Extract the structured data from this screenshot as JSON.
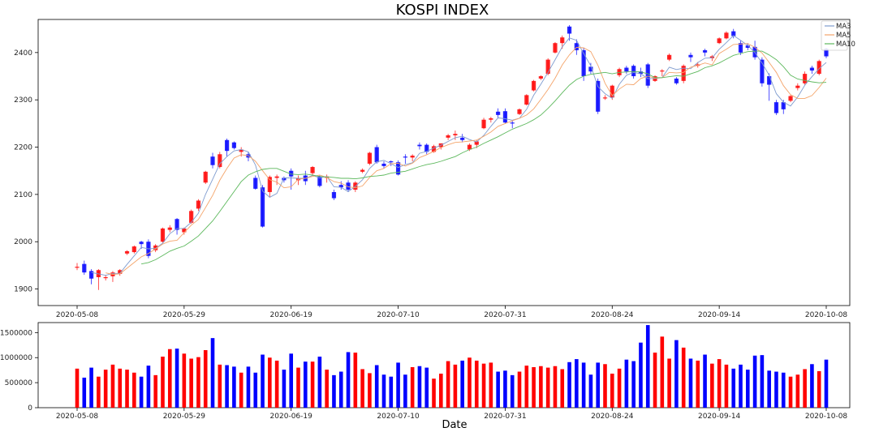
{
  "chart_data": [
    {
      "type": "candlestick",
      "title": "KOSPI INDEX",
      "ylim": [
        1865,
        2470
      ],
      "yticks": [
        1900,
        2000,
        2100,
        2200,
        2300,
        2400
      ],
      "xticks": [
        {
          "i": 0,
          "label": "2020-05-08"
        },
        {
          "i": 15,
          "label": "2020-05-29"
        },
        {
          "i": 30,
          "label": "2020-06-19"
        },
        {
          "i": 45,
          "label": "2020-07-10"
        },
        {
          "i": 60,
          "label": "2020-07-31"
        },
        {
          "i": 75,
          "label": "2020-08-24"
        },
        {
          "i": 90,
          "label": "2020-09-14"
        },
        {
          "i": 105,
          "label": "2020-10-08"
        }
      ],
      "legend": {
        "position": "top-right",
        "entries": [
          {
            "name": "MA3",
            "color": "#7f9ccf"
          },
          {
            "name": "MA5",
            "color": "#f4a46a"
          },
          {
            "name": "MA10",
            "color": "#5cb85c"
          }
        ]
      },
      "up_color": "#ff0000",
      "down_color": "#0000ff",
      "ohlc": [
        [
          1945,
          1955,
          1940,
          1947
        ],
        [
          1953,
          1960,
          1930,
          1935
        ],
        [
          1938,
          1942,
          1910,
          1922
        ],
        [
          1925,
          1942,
          1898,
          1940
        ],
        [
          1923,
          1930,
          1918,
          1925
        ],
        [
          1927,
          1938,
          1915,
          1935
        ],
        [
          1932,
          1942,
          1928,
          1940
        ],
        [
          1975,
          1982,
          1972,
          1980
        ],
        [
          1978,
          1992,
          1975,
          1990
        ],
        [
          2000,
          2002,
          1985,
          1995
        ],
        [
          2000,
          2005,
          1965,
          1970
        ],
        [
          1982,
          1995,
          1978,
          1992
        ],
        [
          2000,
          2030,
          1998,
          2028
        ],
        [
          2025,
          2035,
          2020,
          2030
        ],
        [
          2048,
          2050,
          2015,
          2025
        ],
        [
          2020,
          2030,
          2015,
          2028
        ],
        [
          2040,
          2068,
          2038,
          2065
        ],
        [
          2070,
          2090,
          2065,
          2087
        ],
        [
          2125,
          2150,
          2122,
          2148
        ],
        [
          2180,
          2188,
          2155,
          2162
        ],
        [
          2158,
          2190,
          2155,
          2185
        ],
        [
          2215,
          2218,
          2180,
          2192
        ],
        [
          2210,
          2212,
          2195,
          2198
        ],
        [
          2190,
          2200,
          2180,
          2195
        ],
        [
          2185,
          2190,
          2170,
          2178
        ],
        [
          2135,
          2140,
          2110,
          2112
        ],
        [
          2115,
          2120,
          2030,
          2032
        ],
        [
          2105,
          2140,
          2095,
          2137
        ],
        [
          2135,
          2142,
          2120,
          2138
        ],
        [
          2135,
          2138,
          2125,
          2130
        ],
        [
          2150,
          2155,
          2110,
          2138
        ],
        [
          2130,
          2140,
          2120,
          2135
        ],
        [
          2140,
          2150,
          2120,
          2128
        ],
        [
          2145,
          2160,
          2140,
          2158
        ],
        [
          2138,
          2140,
          2115,
          2118
        ],
        [
          2135,
          2142,
          2125,
          2138
        ],
        [
          2105,
          2110,
          2088,
          2092
        ],
        [
          2120,
          2128,
          2110,
          2115
        ],
        [
          2125,
          2130,
          2105,
          2110
        ],
        [
          2110,
          2128,
          2105,
          2125
        ],
        [
          2148,
          2155,
          2145,
          2152
        ],
        [
          2165,
          2190,
          2162,
          2188
        ],
        [
          2200,
          2205,
          2165,
          2168
        ],
        [
          2165,
          2170,
          2155,
          2160
        ],
        [
          2170,
          2172,
          2160,
          2168
        ],
        [
          2168,
          2172,
          2140,
          2142
        ],
        [
          2180,
          2185,
          2165,
          2178
        ],
        [
          2178,
          2185,
          2170,
          2182
        ],
        [
          2205,
          2210,
          2195,
          2202
        ],
        [
          2205,
          2208,
          2185,
          2190
        ],
        [
          2190,
          2205,
          2188,
          2202
        ],
        [
          2200,
          2205,
          2195,
          2208
        ],
        [
          2220,
          2228,
          2215,
          2225
        ],
        [
          2225,
          2235,
          2215,
          2228
        ],
        [
          2220,
          2228,
          2210,
          2215
        ],
        [
          2195,
          2208,
          2192,
          2205
        ],
        [
          2205,
          2215,
          2198,
          2212
        ],
        [
          2240,
          2262,
          2238,
          2258
        ],
        [
          2258,
          2264,
          2252,
          2261
        ],
        [
          2275,
          2282,
          2262,
          2268
        ],
        [
          2276,
          2282,
          2250,
          2252
        ],
        [
          2252,
          2256,
          2240,
          2250
        ],
        [
          2270,
          2282,
          2268,
          2280
        ],
        [
          2290,
          2312,
          2288,
          2310
        ],
        [
          2320,
          2342,
          2318,
          2340
        ],
        [
          2345,
          2352,
          2342,
          2350
        ],
        [
          2355,
          2388,
          2352,
          2385
        ],
        [
          2400,
          2422,
          2398,
          2420
        ],
        [
          2420,
          2436,
          2408,
          2432
        ],
        [
          2455,
          2458,
          2425,
          2440
        ],
        [
          2420,
          2428,
          2395,
          2405
        ],
        [
          2405,
          2410,
          2340,
          2350
        ],
        [
          2370,
          2378,
          2355,
          2360
        ],
        [
          2340,
          2345,
          2270,
          2275
        ],
        [
          2305,
          2310,
          2300,
          2305
        ],
        [
          2305,
          2332,
          2300,
          2330
        ],
        [
          2352,
          2368,
          2348,
          2365
        ],
        [
          2368,
          2372,
          2355,
          2360
        ],
        [
          2372,
          2375,
          2345,
          2350
        ],
        [
          2360,
          2368,
          2348,
          2355
        ],
        [
          2375,
          2378,
          2325,
          2330
        ],
        [
          2340,
          2352,
          2338,
          2350
        ],
        [
          2360,
          2365,
          2350,
          2362
        ],
        [
          2385,
          2398,
          2382,
          2395
        ],
        [
          2345,
          2348,
          2332,
          2335
        ],
        [
          2340,
          2375,
          2335,
          2372
        ],
        [
          2395,
          2400,
          2380,
          2390
        ],
        [
          2372,
          2380,
          2368,
          2375
        ],
        [
          2405,
          2408,
          2392,
          2400
        ],
        [
          2388,
          2395,
          2382,
          2392
        ],
        [
          2420,
          2432,
          2418,
          2430
        ],
        [
          2430,
          2445,
          2428,
          2442
        ],
        [
          2445,
          2450,
          2430,
          2435
        ],
        [
          2420,
          2425,
          2395,
          2400
        ],
        [
          2415,
          2420,
          2405,
          2410
        ],
        [
          2412,
          2425,
          2385,
          2390
        ],
        [
          2385,
          2390,
          2328,
          2335
        ],
        [
          2350,
          2356,
          2298,
          2332
        ],
        [
          2295,
          2300,
          2268,
          2272
        ],
        [
          2295,
          2300,
          2270,
          2280
        ],
        [
          2298,
          2310,
          2295,
          2308
        ],
        [
          2325,
          2335,
          2320,
          2330
        ],
        [
          2335,
          2360,
          2332,
          2355
        ],
        [
          2368,
          2372,
          2355,
          2362
        ],
        [
          2355,
          2385,
          2352,
          2382
        ],
        [
          2408,
          2410,
          2388,
          2392
        ]
      ],
      "ma3": [
        null,
        null,
        1935,
        1932,
        1929,
        1933,
        1933,
        1952,
        1970,
        1988,
        1985,
        1986,
        1997,
        2017,
        2028,
        2028,
        2041,
        2060,
        2100,
        2132,
        2165,
        2180,
        2192,
        2195,
        2190,
        2162,
        2107,
        2094,
        2102,
        2135,
        2135,
        2134,
        2134,
        2140,
        2135,
        2138,
        2116,
        2115,
        2106,
        2117,
        2131,
        2155,
        2169,
        2172,
        2165,
        2157,
        2163,
        2167,
        2187,
        2191,
        2198,
        2204,
        2212,
        2220,
        2223,
        2216,
        2211,
        2225,
        2244,
        2262,
        2260,
        2257,
        2261,
        2280,
        2310,
        2333,
        2358,
        2385,
        2412,
        2431,
        2426,
        2398,
        2372,
        2328,
        2313,
        2303,
        2333,
        2352,
        2358,
        2355,
        2345,
        2345,
        2347,
        2369,
        2364,
        2367,
        2366,
        2379,
        2388,
        2389,
        2407,
        2421,
        2436,
        2426,
        2415,
        2400,
        2378,
        2352,
        2313,
        2295,
        2287,
        2306,
        2331,
        2349,
        2366,
        2379
      ],
      "ma5": [
        null,
        null,
        null,
        null,
        1934,
        1931,
        1932,
        1944,
        1956,
        1968,
        1975,
        1985,
        1995,
        2001,
        2003,
        2019,
        2035,
        2047,
        2072,
        2098,
        2130,
        2155,
        2177,
        2184,
        2182,
        2170,
        2150,
        2131,
        2126,
        2114,
        2116,
        2132,
        2134,
        2138,
        2141,
        2136,
        2127,
        2124,
        2116,
        2114,
        2118,
        2136,
        2150,
        2155,
        2165,
        2166,
        2160,
        2166,
        2178,
        2184,
        2191,
        2199,
        2205,
        2210,
        2211,
        2213,
        2215,
        2223,
        2232,
        2244,
        2250,
        2256,
        2261,
        2268,
        2281,
        2301,
        2322,
        2346,
        2374,
        2395,
        2411,
        2410,
        2402,
        2373,
        2335,
        2309,
        2323,
        2333,
        2332,
        2345,
        2350,
        2346,
        2347,
        2358,
        2357,
        2358,
        2369,
        2373,
        2378,
        2374,
        2398,
        2407,
        2417,
        2418,
        2419,
        2411,
        2399,
        2379,
        2358,
        2330,
        2311,
        2303,
        2303,
        2309,
        2326,
        2346
      ],
      "ma10": [
        null,
        null,
        null,
        null,
        null,
        null,
        null,
        null,
        null,
        1953,
        1956,
        1962,
        1971,
        1980,
        1986,
        1991,
        2001,
        2012,
        2028,
        2044,
        2064,
        2085,
        2106,
        2127,
        2141,
        2148,
        2153,
        2155,
        2155,
        2149,
        2143,
        2142,
        2143,
        2141,
        2138,
        2137,
        2136,
        2134,
        2134,
        2133,
        2135,
        2138,
        2139,
        2141,
        2145,
        2147,
        2149,
        2154,
        2159,
        2163,
        2166,
        2170,
        2175,
        2180,
        2188,
        2195,
        2200,
        2208,
        2215,
        2222,
        2230,
        2238,
        2244,
        2250,
        2258,
        2268,
        2282,
        2298,
        2315,
        2331,
        2343,
        2350,
        2354,
        2356,
        2358,
        2355,
        2358,
        2359,
        2360,
        2359,
        2355,
        2347,
        2347,
        2349,
        2351,
        2350,
        2355,
        2360,
        2368,
        2372,
        2378,
        2386,
        2394,
        2398,
        2402,
        2403,
        2403,
        2395,
        2385,
        2370,
        2352,
        2344,
        2341,
        2338,
        2336,
        2337
      ]
    },
    {
      "type": "bar",
      "xlabel": "Date",
      "ylim": [
        0,
        1700000
      ],
      "yticks": [
        0,
        500000,
        1000000,
        1500000
      ],
      "up_color": "#ff0000",
      "down_color": "#0000ff",
      "values": [
        780000,
        600000,
        800000,
        620000,
        760000,
        860000,
        780000,
        760000,
        700000,
        620000,
        840000,
        650000,
        1020000,
        1170000,
        1180000,
        1080000,
        980000,
        1010000,
        1150000,
        1390000,
        860000,
        850000,
        820000,
        700000,
        820000,
        700000,
        1060000,
        1000000,
        940000,
        760000,
        1080000,
        800000,
        920000,
        920000,
        1020000,
        760000,
        650000,
        720000,
        1110000,
        1100000,
        770000,
        690000,
        850000,
        660000,
        620000,
        900000,
        660000,
        810000,
        830000,
        800000,
        580000,
        680000,
        930000,
        860000,
        940000,
        1000000,
        940000,
        880000,
        900000,
        720000,
        740000,
        650000,
        720000,
        840000,
        810000,
        830000,
        800000,
        830000,
        770000,
        910000,
        970000,
        900000,
        660000,
        900000,
        870000,
        680000,
        780000,
        960000,
        930000,
        1300000,
        1650000,
        1100000,
        1420000,
        980000,
        1350000,
        1200000,
        980000,
        940000,
        1060000,
        880000,
        970000,
        860000,
        780000,
        860000,
        760000,
        1040000,
        1050000,
        740000,
        720000,
        700000,
        620000,
        660000,
        770000,
        870000,
        730000,
        960000
      ]
    }
  ]
}
